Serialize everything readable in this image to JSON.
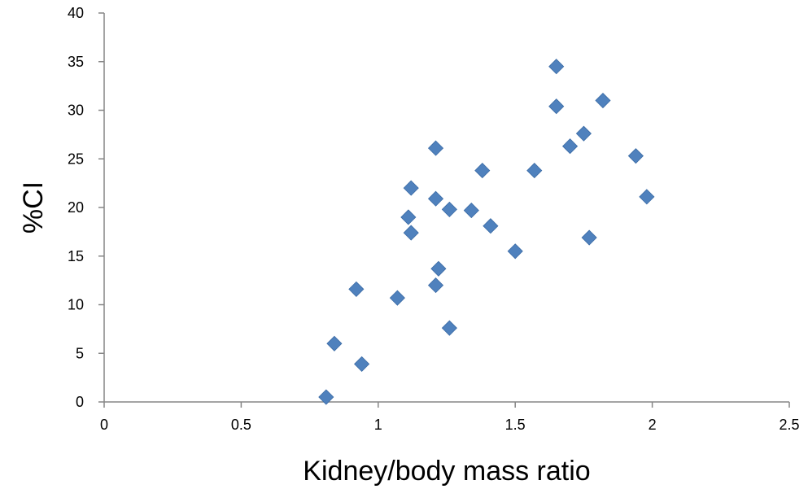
{
  "chart_data": {
    "type": "scatter",
    "xlabel": "Kidney/body mass ratio",
    "ylabel": "%CI",
    "xlim": [
      0,
      2.5
    ],
    "ylim": [
      0,
      40
    ],
    "x_ticks": [
      "0",
      "0.5",
      "1",
      "1.5",
      "2",
      "2.5"
    ],
    "y_ticks": [
      "0",
      "5",
      "10",
      "15",
      "20",
      "25",
      "30",
      "35",
      "40"
    ],
    "grid": false,
    "legend": "none",
    "marker": "diamond",
    "marker_color": "#4F81BD",
    "points": [
      {
        "x": 0.81,
        "y": 0.5
      },
      {
        "x": 0.84,
        "y": 6.0
      },
      {
        "x": 0.92,
        "y": 11.6
      },
      {
        "x": 0.94,
        "y": 3.9
      },
      {
        "x": 1.07,
        "y": 10.7
      },
      {
        "x": 1.11,
        "y": 19.0
      },
      {
        "x": 1.12,
        "y": 17.4
      },
      {
        "x": 1.12,
        "y": 22.0
      },
      {
        "x": 1.21,
        "y": 12.0
      },
      {
        "x": 1.21,
        "y": 20.9
      },
      {
        "x": 1.21,
        "y": 26.1
      },
      {
        "x": 1.22,
        "y": 13.7
      },
      {
        "x": 1.26,
        "y": 7.6
      },
      {
        "x": 1.26,
        "y": 19.8
      },
      {
        "x": 1.34,
        "y": 19.7
      },
      {
        "x": 1.38,
        "y": 23.8
      },
      {
        "x": 1.41,
        "y": 18.1
      },
      {
        "x": 1.5,
        "y": 15.5
      },
      {
        "x": 1.57,
        "y": 23.8
      },
      {
        "x": 1.65,
        "y": 34.5
      },
      {
        "x": 1.65,
        "y": 30.4
      },
      {
        "x": 1.7,
        "y": 26.3
      },
      {
        "x": 1.75,
        "y": 27.6
      },
      {
        "x": 1.77,
        "y": 16.9
      },
      {
        "x": 1.82,
        "y": 31.0
      },
      {
        "x": 1.94,
        "y": 25.3
      },
      {
        "x": 1.98,
        "y": 21.1
      }
    ]
  }
}
